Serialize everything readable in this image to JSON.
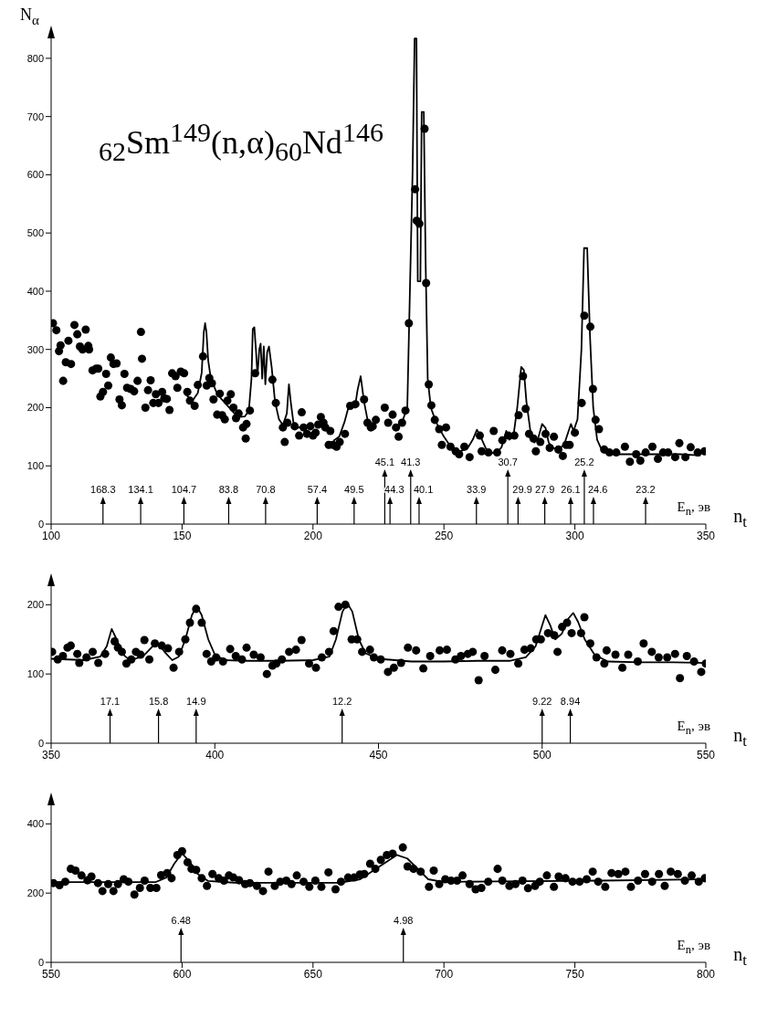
{
  "chart_data": [
    {
      "type": "scatter",
      "title": "$_{62}$Sm$^{149}$(n,α)$_{60}$Nd$^{146}$",
      "xlabel": "n$_{t}$",
      "ylabel": "N$_{α}$",
      "xlim": [
        100,
        350
      ],
      "xticks": [
        100,
        150,
        200,
        250,
        300,
        350
      ],
      "ylim": [
        0,
        850
      ],
      "yticks": [
        0,
        100,
        200,
        300,
        400,
        500,
        600,
        700,
        800
      ],
      "line_style": "solid",
      "series": [
        {
          "marker": "circle",
          "color": "#000000",
          "x": [
            100.7,
            102,
            103,
            103.6,
            104.6,
            105.6,
            106.6,
            107.6,
            108.9,
            110,
            111,
            112,
            113.2,
            114.2,
            114.5,
            115.8,
            117.2,
            118,
            118.8,
            119.8,
            121,
            121.8,
            122.8,
            123.8,
            125,
            126.1,
            127,
            128,
            129,
            130.4,
            131.7,
            133,
            134.3,
            134.7,
            136,
            137,
            138,
            139,
            140,
            141,
            142.4,
            143.2,
            144.2,
            145.2,
            146.2,
            147.5,
            148.2,
            149.5,
            150.8,
            152,
            153,
            154.8,
            156,
            158,
            159.4,
            160.4,
            161.4,
            162,
            163.4,
            164.4,
            165.3,
            166.3,
            167.3,
            168.6,
            169.6,
            170.6,
            171.6,
            173.3,
            174.6,
            174.3,
            175.9,
            177.9,
            184.5,
            185.8,
            188.5,
            189.2,
            190.2,
            193,
            194.7,
            195.7,
            196.4,
            197.7,
            199,
            200,
            201,
            202,
            203,
            204,
            204.7,
            206.6,
            206,
            207.6,
            209,
            210.2,
            212.2,
            214.2,
            216.2,
            219.5,
            220.8,
            222.8,
            222.1,
            224,
            227.4,
            228.7,
            230.4,
            231.7,
            232.7,
            234,
            235.3,
            236.6,
            239,
            239.6,
            240.6,
            242.6,
            243.2,
            244.2,
            245.2,
            246.5,
            248.2,
            249.2,
            250.8,
            252.5,
            254.5,
            255.8,
            257.8,
            259.8,
            263.7,
            264.4,
            267,
            269,
            270.3,
            272.3,
            274.6,
            276.9,
            278.5,
            280.2,
            281.2,
            282.5,
            284.2,
            285.1,
            286.8,
            288.8,
            290.4,
            292,
            293.7,
            295.4,
            296.7,
            298,
            300,
            302.6,
            303.6,
            305.9,
            306.9,
            307.9,
            309.2,
            311.2,
            313.2,
            315.8,
            319.1,
            321,
            323.4,
            325,
            327,
            329.6,
            331.7,
            333.7,
            335.6,
            338.3,
            339.9,
            342.2,
            344.2,
            346.9,
            349.5
          ],
          "values": [
            345,
            333,
            297,
            307,
            246,
            278,
            315,
            275,
            342,
            326,
            305,
            300,
            334,
            306,
            300,
            264,
            267,
            267,
            219,
            227,
            258,
            238,
            286,
            275,
            276,
            214,
            204,
            258,
            234,
            232,
            228,
            246,
            330,
            284,
            200,
            230,
            247,
            208,
            223,
            208,
            227,
            216,
            215,
            196,
            259,
            254,
            234,
            262,
            259,
            227,
            212,
            203,
            239,
            288,
            238,
            251,
            242,
            214,
            188,
            224,
            187,
            180,
            212,
            223,
            200,
            182,
            190,
            166,
            172,
            147,
            195,
            259,
            248,
            208,
            166,
            141,
            174,
            168,
            152,
            192,
            166,
            155,
            168,
            152,
            157,
            171,
            184,
            174,
            166,
            160,
            136,
            136,
            133,
            141,
            155,
            203,
            206,
            214,
            174,
            168,
            166,
            179,
            200,
            174,
            188,
            166,
            150,
            174,
            195,
            345,
            575,
            521,
            516,
            679,
            414,
            240,
            204,
            179,
            163,
            136,
            166,
            133,
            125,
            120,
            133,
            115,
            152,
            125,
            123,
            160,
            123,
            144,
            152,
            152,
            187,
            254,
            198,
            155,
            147,
            125,
            141,
            155,
            131,
            150,
            128,
            117,
            136,
            136,
            157,
            208,
            358,
            339,
            232,
            179,
            163,
            128,
            123,
            123,
            133,
            107,
            120,
            109,
            123,
            133,
            112,
            123,
            123,
            115,
            139,
            115,
            132,
            123,
            125
          ]
        },
        {
          "type": "line",
          "marker": "none",
          "color": "#000000",
          "x": [
            151.5,
            154,
            156,
            157.5,
            158.3,
            158.8,
            159.3,
            160,
            161,
            163,
            165,
            168,
            170,
            172,
            174,
            175.5,
            176.5,
            177,
            177.6,
            178.2,
            178.8,
            179.5,
            180,
            180.6,
            181.2,
            181.8,
            182.5,
            183.2,
            184.2,
            185.5,
            187,
            188.5,
            190,
            190.8,
            191.5,
            192.5,
            194,
            195.7,
            200,
            207.8,
            210,
            212,
            213.5,
            215,
            216,
            217,
            218.2,
            219.5,
            221,
            224,
            228,
            231.4,
            234,
            236,
            237,
            238,
            238.8,
            239.5,
            240,
            241,
            241.5,
            242.3,
            243,
            243.8,
            245,
            247,
            250,
            253,
            256,
            259,
            261,
            262.6,
            264,
            266,
            268,
            270,
            272,
            273.8,
            275,
            276.5,
            278,
            279.5,
            280.5,
            281.5,
            283,
            284.5,
            286,
            287.5,
            288.8,
            290,
            292,
            294,
            296,
            298.5,
            299.5,
            301,
            302.5,
            303.5,
            304.7,
            305.8,
            307,
            308.5,
            310.5,
            314,
            320,
            330,
            340,
            348
          ],
          "values": [
            222,
            212,
            225,
            260,
            330,
            345,
            330,
            280,
            250,
            228,
            215,
            200,
            190,
            184,
            185,
            195,
            250,
            335,
            338,
            300,
            255,
            300,
            310,
            250,
            305,
            240,
            295,
            305,
            270,
            210,
            180,
            170,
            190,
            240,
            210,
            175,
            165,
            168,
            null,
            143,
            150,
            175,
            200,
            205,
            200,
            230,
            254,
            210,
            175,
            165,
            null,
            163,
            175,
            200,
            400,
            600,
            834,
            834,
            417,
            417,
            708,
            708,
            450,
            250,
            200,
            175,
            150,
            130,
            125,
            130,
            145,
            162,
            150,
            130,
            122,
            122,
            132,
            160,
            145,
            150,
            200,
            270,
            265,
            210,
            160,
            140,
            148,
            172,
            165,
            140,
            130,
            128,
            138,
            172,
            160,
            180,
            300,
            474,
            474,
            320,
            200,
            145,
            125,
            120,
            120,
            120,
            120,
            118
          ]
        }
      ],
      "annotations": [
        {
          "text": "168.3",
          "x": 119.8
        },
        {
          "text": "134.1",
          "x": 134.2
        },
        {
          "text": "104.7",
          "x": 150.7
        },
        {
          "text": "83.8",
          "x": 167.8
        },
        {
          "text": "70.8",
          "x": 181.9
        },
        {
          "text": "57.4",
          "x": 201.6
        },
        {
          "text": "49.5",
          "x": 215.7
        },
        {
          "text": "45.1",
          "x": 227.4
        },
        {
          "text": "44.3",
          "x": 229.4
        },
        {
          "text": "41.3",
          "x": 237.3
        },
        {
          "text": "40.1",
          "x": 240.5
        },
        {
          "text": "33.9",
          "x": 262.4
        },
        {
          "text": "30.7",
          "x": 274.4
        },
        {
          "text": "29.9",
          "x": 278.3
        },
        {
          "text": "27.9",
          "x": 288.5
        },
        {
          "text": "26.1",
          "x": 298.4
        },
        {
          "text": "25.2",
          "x": 303.6
        },
        {
          "text": "24.6",
          "x": 307.1
        },
        {
          "text": "23.2",
          "x": 327
        },
        "E$_{n}$, эв"
      ]
    },
    {
      "type": "scatter",
      "xlabel": "n$_{t}$",
      "xlim": [
        350,
        550
      ],
      "xticks": [
        350,
        400,
        450,
        500,
        550
      ],
      "ylim": [
        0,
        240
      ],
      "yticks": [
        0,
        100,
        200
      ],
      "line_style": "solid",
      "series": [
        {
          "marker": "circle",
          "color": "#000000",
          "x": [
            350.3,
            352,
            353.6,
            355,
            356,
            358,
            358.6,
            360.8,
            362.7,
            364.4,
            366.5,
            369.4,
            370.4,
            371.6,
            373,
            374.5,
            375.9,
            377.3,
            378.5,
            380,
            381.7,
            383.8,
            385.7,
            387.4,
            389.1,
            391,
            392.4,
            394.3,
            396,
            397.5,
            398.9,
            400.4,
            402.5,
            404.7,
            406.4,
            408.3,
            409.7,
            411.9,
            414,
            415.9,
            417.6,
            418.8,
            420.5,
            422.7,
            424.8,
            426.5,
            428.8,
            430.9,
            432.7,
            434.9,
            436.3,
            437.8,
            439.9,
            441.8,
            443.5,
            445,
            447.4,
            448.6,
            450.7,
            452.9,
            454.7,
            456.9,
            459,
            461.5,
            463.7,
            465.8,
            468.7,
            470.9,
            473.5,
            475.2,
            477.3,
            478.8,
            480.6,
            482.4,
            485.7,
            487.8,
            490.3,
            492.7,
            494.6,
            496.5,
            498.2,
            499.6,
            501.8,
            503.7,
            504.7,
            506.1,
            507.6,
            509,
            511.9,
            512.9,
            514.7,
            516.6,
            519,
            519.7,
            522.4,
            524.5,
            526.3,
            529.2,
            531,
            533.5,
            535.6,
            538.2,
            540.6,
            542.1,
            544.2,
            546.4,
            548.6,
            550
          ],
          "values": [
            132,
            121,
            126,
            138,
            141,
            129,
            116,
            124,
            132,
            116,
            129,
            147,
            138,
            132,
            115,
            121,
            132,
            128,
            149,
            121,
            144,
            141,
            137,
            109,
            132,
            150,
            174,
            194,
            174,
            129,
            118,
            124,
            118,
            136,
            126,
            121,
            138,
            128,
            124,
            100,
            112,
            115,
            121,
            132,
            135,
            149,
            115,
            109,
            124,
            132,
            162,
            197,
            200,
            150,
            150,
            132,
            135,
            124,
            121,
            103,
            109,
            116,
            138,
            134,
            108,
            126,
            134,
            135,
            121,
            126,
            129,
            132,
            91,
            126,
            106,
            134,
            129,
            115,
            135,
            137,
            150,
            150,
            159,
            156,
            132,
            168,
            174,
            159,
            159,
            182,
            144,
            124,
            115,
            134,
            128,
            109,
            128,
            118,
            144,
            132,
            124,
            124,
            129,
            94,
            126,
            118,
            103,
            115
          ]
        },
        {
          "type": "line",
          "marker": "none",
          "color": "#000000",
          "x": [
            350,
            360,
            365,
            367,
            368.5,
            370,
            372,
            374,
            378,
            381,
            383,
            385,
            387,
            389,
            391,
            393,
            394.5,
            396,
            398,
            400,
            403,
            410,
            420,
            430,
            435,
            437,
            439,
            440.5,
            442,
            444,
            446,
            450,
            460,
            470,
            480,
            490,
            495,
            498,
            500,
            501,
            502.5,
            504,
            506,
            508,
            509.5,
            511,
            513,
            516,
            520,
            530,
            540,
            550
          ],
          "values": [
            122,
            120,
            125,
            140,
            165,
            150,
            128,
            120,
            125,
            140,
            142,
            130,
            120,
            125,
            150,
            185,
            198,
            185,
            150,
            128,
            120,
            119,
            119,
            120,
            125,
            150,
            190,
            202,
            190,
            150,
            130,
            122,
            118,
            118,
            119,
            119,
            124,
            140,
            170,
            185,
            170,
            150,
            158,
            180,
            188,
            175,
            150,
            128,
            118,
            117,
            117,
            116
          ]
        }
      ],
      "annotations": [
        {
          "text": "17.1",
          "x": 368
        },
        {
          "text": "15.8",
          "x": 382.8
        },
        {
          "text": "14.9",
          "x": 394.3
        },
        {
          "text": "12.2",
          "x": 438.9
        },
        {
          "text": "9.22",
          "x": 500
        },
        {
          "text": "8.94",
          "x": 508.6
        },
        "E$_{n}$, эв"
      ]
    },
    {
      "type": "scatter",
      "xlabel": "n$_{t}$",
      "xlim": [
        550,
        800
      ],
      "xticks": [
        550,
        600,
        650,
        700,
        750,
        800
      ],
      "ylim": [
        0,
        480
      ],
      "yticks": [
        0,
        200,
        400
      ],
      "line_style": "solid",
      "series": [
        {
          "marker": "circle",
          "color": "#000000",
          "x": [
            550.9,
            553.2,
            555.4,
            557.5,
            559.3,
            561.6,
            563.9,
            565.4,
            567.9,
            569.6,
            571.8,
            573.8,
            575.5,
            577.7,
            579.5,
            581.8,
            583.9,
            585.7,
            587.9,
            590.2,
            592,
            594.3,
            596,
            598.2,
            600,
            602.1,
            603.6,
            605.4,
            607.5,
            609.5,
            611.6,
            614,
            616,
            617.9,
            619.6,
            621.8,
            624.1,
            625.9,
            628.6,
            630.9,
            633,
            635.4,
            637.5,
            639.8,
            641.8,
            643.8,
            646.4,
            648.6,
            650.9,
            653.2,
            655.9,
            658.6,
            660.7,
            663.4,
            665.7,
            667.9,
            669.6,
            671.8,
            673.8,
            675.9,
            678.2,
            680.4,
            684.3,
            686.1,
            688.4,
            691.1,
            694.3,
            696.1,
            698.2,
            700.5,
            702.7,
            705,
            707.1,
            709.8,
            712.1,
            714.3,
            716.9,
            720.5,
            722.3,
            725,
            727.3,
            730,
            732.1,
            734.8,
            736.6,
            739.3,
            742,
            743.8,
            746.4,
            749.1,
            751.8,
            754.5,
            756.8,
            758.9,
            761.6,
            764,
            766.6,
            769.3,
            771.4,
            774.1,
            776.8,
            779.5,
            782.1,
            784.3,
            786.6,
            789.3,
            792,
            794.6,
            797.3,
            799.6
          ],
          "values": [
            229,
            223,
            233,
            270,
            265,
            251,
            237,
            248,
            229,
            206,
            226,
            206,
            226,
            240,
            233,
            196,
            215,
            236,
            215,
            215,
            252,
            258,
            243,
            310,
            321,
            289,
            270,
            267,
            243,
            221,
            255,
            243,
            236,
            251,
            245,
            237,
            226,
            229,
            221,
            206,
            262,
            221,
            233,
            236,
            226,
            251,
            233,
            218,
            236,
            218,
            260,
            211,
            233,
            245,
            245,
            254,
            255,
            285,
            270,
            296,
            310,
            314,
            332,
            277,
            270,
            262,
            218,
            265,
            226,
            240,
            236,
            236,
            251,
            226,
            211,
            215,
            233,
            270,
            236,
            221,
            226,
            236,
            214,
            221,
            233,
            251,
            218,
            248,
            243,
            233,
            233,
            240,
            262,
            233,
            218,
            258,
            255,
            262,
            218,
            236,
            255,
            233,
            255,
            221,
            262,
            255,
            236,
            251,
            233,
            243
          ]
        },
        {
          "type": "line",
          "marker": "none",
          "color": "#000000",
          "x": [
            550,
            590,
            594,
            597,
            600,
            603,
            606,
            610,
            620,
            660,
            668,
            675,
            682,
            686,
            690,
            694,
            700,
            720,
            760,
            800
          ],
          "values": [
            232,
            232,
            245,
            285,
            315,
            290,
            255,
            235,
            230,
            230,
            240,
            275,
            310,
            300,
            270,
            240,
            232,
            234,
            236,
            240
          ]
        }
      ],
      "annotations": [
        {
          "text": "6.48",
          "x": 599.6
        },
        {
          "text": "4.98",
          "x": 684.5
        },
        "E$_{n}$, эв"
      ]
    }
  ]
}
